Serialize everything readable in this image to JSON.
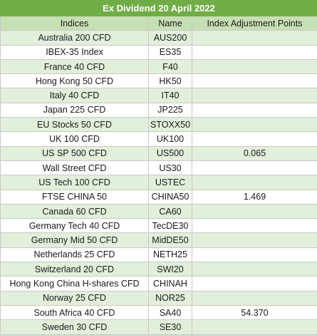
{
  "title": "Ex Dividend 20 April 2022",
  "columns": [
    "Indices",
    "Name",
    "Index Adjustment Points"
  ],
  "rows": [
    {
      "index": "Australia 200 CFD",
      "name": "AUS200",
      "points": ""
    },
    {
      "index": "IBEX-35 Index",
      "name": "ES35",
      "points": ""
    },
    {
      "index": "France 40 CFD",
      "name": "F40",
      "points": ""
    },
    {
      "index": "Hong Kong 50 CFD",
      "name": "HK50",
      "points": ""
    },
    {
      "index": "Italy 40 CFD",
      "name": "IT40",
      "points": ""
    },
    {
      "index": "Japan 225 CFD",
      "name": "JP225",
      "points": ""
    },
    {
      "index": "EU Stocks 50 CFD",
      "name": "STOXX50",
      "points": ""
    },
    {
      "index": "UK 100 CFD",
      "name": "UK100",
      "points": ""
    },
    {
      "index": "US SP 500 CFD",
      "name": "US500",
      "points": "0.065"
    },
    {
      "index": "Wall Street CFD",
      "name": "US30",
      "points": ""
    },
    {
      "index": "US Tech 100 CFD",
      "name": "USTEC",
      "points": ""
    },
    {
      "index": "FTSE CHINA 50",
      "name": "CHINA50",
      "points": "1.469"
    },
    {
      "index": "Canada 60 CFD",
      "name": "CA60",
      "points": ""
    },
    {
      "index": "Germany Tech 40 CFD",
      "name": "TecDE30",
      "points": ""
    },
    {
      "index": "Germany Mid 50 CFD",
      "name": "MidDE50",
      "points": ""
    },
    {
      "index": "Netherlands 25 CFD",
      "name": "NETH25",
      "points": ""
    },
    {
      "index": "Switzerland 20 CFD",
      "name": "SWI20",
      "points": ""
    },
    {
      "index": "Hong Kong China H-shares CFD",
      "name": "CHINAH",
      "points": ""
    },
    {
      "index": "Norway 25 CFD",
      "name": "NOR25",
      "points": ""
    },
    {
      "index": "South Africa 40 CFD",
      "name": "SA40",
      "points": "54.370"
    },
    {
      "index": "Sweden 30 CFD",
      "name": "SE30",
      "points": ""
    }
  ],
  "colors": {
    "title_bg": "#70ad47",
    "header_bg": "#c6e0b4",
    "alt_row_bg": "#e2efda"
  }
}
